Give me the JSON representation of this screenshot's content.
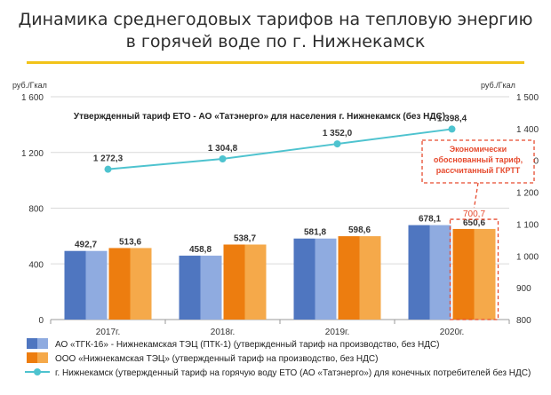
{
  "header": {
    "title_line1": "Динамика среднегодовых тарифов на тепловую энергию",
    "title_line2": "в горячей воде по г. Нижнекамск"
  },
  "colors": {
    "accent_line": "#f2c318",
    "blue_dark": "#4f76c0",
    "blue_light": "#8fabe0",
    "orange_dark": "#ed7d0f",
    "orange_light": "#f5a94a",
    "teal": "#4ec3cf",
    "note_red": "#e64a2e"
  },
  "chart_data": {
    "type": "bar",
    "categories": [
      "2017г.",
      "2018г.",
      "2019г.",
      "2020г."
    ],
    "y_left": {
      "unit": "руб./Гкал",
      "ylim": [
        0,
        1600
      ],
      "ticks": [
        "0",
        "400",
        "800",
        "1 200",
        "1 600"
      ]
    },
    "y_right": {
      "unit": "руб./Гкал",
      "ylim": [
        800,
        1500
      ],
      "ticks": [
        "800",
        "900",
        "1 000",
        "1 100",
        "1 200",
        "1 300",
        "1 400",
        "1 500"
      ]
    },
    "series": [
      {
        "name": "АО «ТГК-16» - Нижнекамская ТЭЦ (ПТК-1) (утвержденный тариф на производство, без НДС)",
        "type": "bar",
        "axis": "left",
        "values": [
          492.7,
          458.8,
          581.8,
          678.1
        ],
        "labels": [
          "492,7",
          "458,8",
          "581,8",
          "678,1"
        ]
      },
      {
        "name": "ООО «Нижнекамская ТЭЦ» (утвержденный тариф на производство, без НДС)",
        "type": "bar",
        "axis": "left",
        "values": [
          513.6,
          538.7,
          598.6,
          650.6
        ],
        "labels": [
          "513,6",
          "538,7",
          "598,6",
          "650,6"
        ]
      },
      {
        "name": "г. Нижнекамск (утвержденный тариф на горячую воду ЕТО (АО «Татэнерго») для конечных потребителей без НДС)",
        "type": "line",
        "axis": "right",
        "values": [
          1272.3,
          1304.8,
          1352.0,
          1398.4
        ],
        "labels": [
          "1 272,3",
          "1 304,8",
          "1 352,0",
          "1 398,4"
        ]
      }
    ],
    "line_series_title": "Утвержденный тариф ЕТО - АО «Татэнерго» для населения г. Нижнекамск (без НДС)",
    "annotation": {
      "text_lines": [
        "Экономически",
        "обоснованный тариф,",
        "рассчитанный ГКРТТ"
      ],
      "value": 700.7,
      "value_label": "700,7",
      "category": "2020г."
    }
  }
}
